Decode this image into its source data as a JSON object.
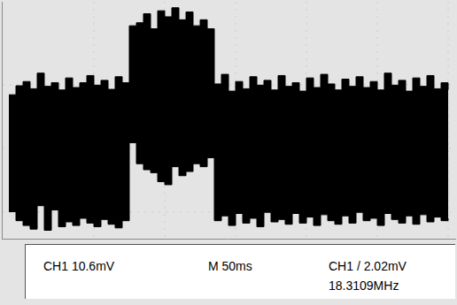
{
  "chart_data": {
    "type": "area",
    "color": "#000000",
    "annotations": [
      "CH1 10.6mV",
      "M 50ms",
      "CH1 / 2.02mV",
      "18.3109MHz"
    ],
    "x": [
      -60,
      -55,
      -50,
      -45,
      -40,
      -35,
      -30,
      -25,
      -20,
      -15,
      -10,
      -5,
      0,
      5,
      10,
      15,
      20,
      25,
      30,
      35,
      40,
      45,
      50,
      55,
      60,
      65,
      70,
      75,
      80,
      85,
      90,
      95,
      100,
      105,
      110,
      115,
      120,
      125,
      130,
      135,
      140,
      145,
      150,
      155,
      160,
      165,
      170,
      175,
      180,
      185,
      190,
      195,
      200,
      205,
      210,
      215,
      220,
      225,
      230,
      235,
      240,
      245,
      250
    ],
    "high": [
      9.0,
      10.5,
      11.2,
      10.0,
      12.6,
      10.4,
      11.0,
      9.8,
      11.8,
      10.2,
      11.0,
      12.2,
      10.6,
      11.4,
      9.9,
      12.0,
      11.0,
      20.5,
      21.0,
      22.5,
      20.0,
      23.0,
      22.0,
      23.5,
      21.5,
      22.8,
      20.5,
      21.5,
      20.0,
      10.8,
      12.4,
      9.6,
      11.2,
      10.0,
      12.0,
      10.6,
      11.4,
      9.8,
      12.2,
      10.4,
      11.0,
      9.6,
      11.8,
      10.2,
      12.4,
      10.8,
      9.8,
      11.6,
      10.4,
      12.0,
      10.2,
      11.2,
      9.8,
      12.6,
      10.6,
      11.4,
      9.6,
      11.8,
      10.4,
      12.2,
      10.0,
      11.0,
      9.8
    ],
    "low": [
      -10.5,
      -12.0,
      -12.8,
      -13.4,
      -9.5,
      -13.6,
      -10.2,
      -13.0,
      -12.2,
      -12.8,
      -11.6,
      -12.4,
      -13.0,
      -11.8,
      -12.6,
      -13.2,
      -12.0,
      1.0,
      -2.5,
      -3.5,
      -4.0,
      -5.5,
      -6.0,
      -3.0,
      -4.5,
      -3.8,
      -2.5,
      -3.0,
      -1.5,
      -12.0,
      -11.2,
      -12.8,
      -10.8,
      -12.4,
      -11.6,
      -13.0,
      -10.6,
      -12.2,
      -11.8,
      -12.6,
      -10.8,
      -12.4,
      -11.4,
      -12.8,
      -11.0,
      -12.0,
      -12.6,
      -11.2,
      -12.4,
      -10.6,
      -12.0,
      -11.6,
      -12.8,
      -10.8,
      -11.8,
      -12.4,
      -11.2,
      -12.6,
      -11.0,
      -12.2,
      -11.4,
      -12.0,
      -11.6
    ],
    "xlim": [
      -65,
      255
    ],
    "xticks": [
      0,
      50,
      100,
      150,
      200,
      250
    ],
    "ylim": [
      -15,
      24.5
    ],
    "yticks": [
      -10.6,
      0,
      10.6
    ],
    "grid": true,
    "tick_labels": false
  }
}
